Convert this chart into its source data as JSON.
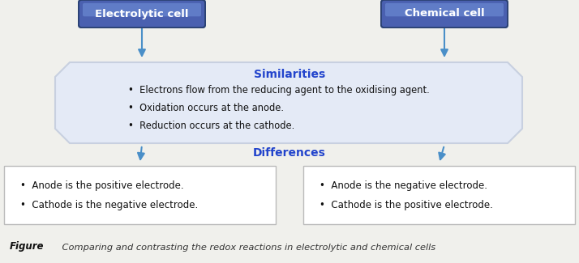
{
  "bg_color": "#f0f0ec",
  "title_label": "Figure",
  "title_caption": "    Comparing and contrasting the redox reactions in electrolytic and chemical cells",
  "left_button_text": "Electrolytic cell",
  "right_button_text": "Chemical cell",
  "similarities_title": "Similarities",
  "similarities_bullets": [
    "Electrons flow from the reducing agent to the oxidising agent.",
    "Oxidation occurs at the anode.",
    "Reduction occurs at the cathode."
  ],
  "differences_title": "Differences",
  "left_box_bullets": [
    "Anode is the positive electrode.",
    "Cathode is the negative electrode."
  ],
  "right_box_bullets": [
    "Anode is the negative electrode.",
    "Cathode is the positive electrode."
  ],
  "button_color_dark": "#4a60b0",
  "button_color_light": "#7090d8",
  "button_text_color": "#ffffff",
  "arrow_color": "#4a8fc8",
  "similarities_title_color": "#2244cc",
  "differences_title_color": "#2244cc",
  "box_border_color": "#bbbbbb",
  "box_bg_color": "#ffffff",
  "bullet_text_color": "#111111",
  "sim_box_bg": "#dde6f4",
  "sim_box_edge": "#c0cce0"
}
